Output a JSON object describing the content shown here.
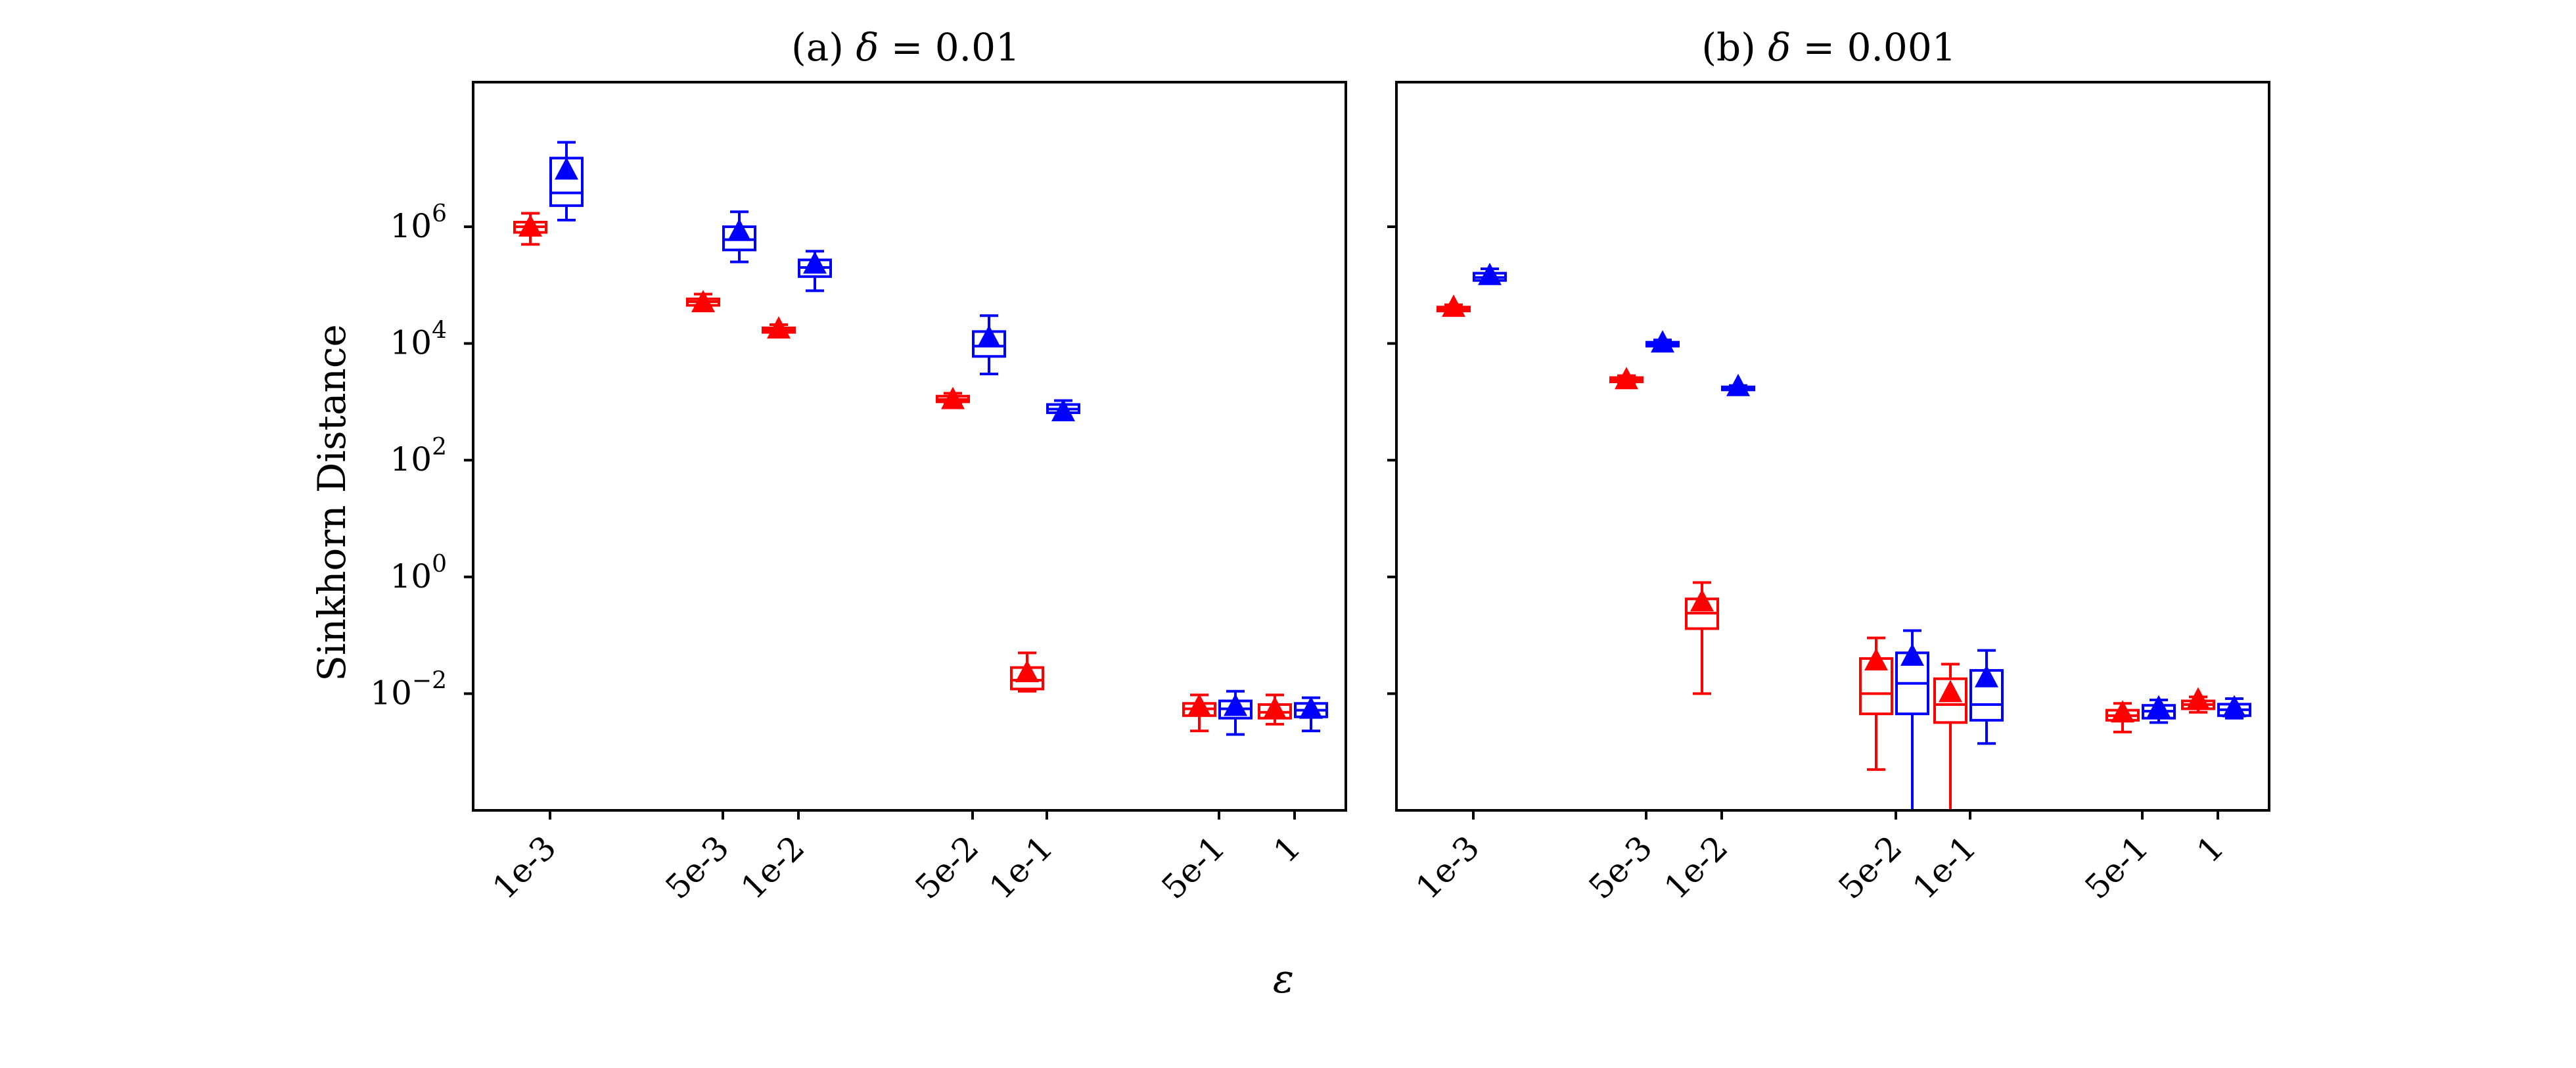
{
  "xlabel": "ε",
  "ylabel": "Sinkhorn Distance",
  "colors": {
    "series_a": "#ff0000",
    "series_b": "#0000ff"
  },
  "chart_data": [
    {
      "type": "box",
      "title_prefix": "(a) ",
      "title_symbol": "δ",
      "title_suffix": " = 0.01",
      "xlabel": "ε",
      "ylabel": "Sinkhorn Distance",
      "yscale": "log",
      "ylim": [
        0.0001,
        300000000
      ],
      "yticks": [
        {
          "base": "10",
          "exp": "6",
          "value": 1000000
        },
        {
          "base": "10",
          "exp": "4",
          "value": 10000
        },
        {
          "base": "10",
          "exp": "2",
          "value": 100
        },
        {
          "base": "10",
          "exp": "0",
          "value": 1
        },
        {
          "base": "10",
          "exp": "−2",
          "value": 0.01
        }
      ],
      "categories": [
        "1e-3",
        "5e-3",
        "1e-2",
        "5e-2",
        "1e-1",
        "5e-1",
        "1"
      ],
      "series": [
        {
          "color": "#ff0000",
          "boxes": [
            {
              "lo": 500000,
              "q1": 800000,
              "med": 1000000,
              "q3": 1200000,
              "hi": 1700000,
              "mean": 950000
            },
            {
              "lo": 40000,
              "q1": 45000,
              "med": 52000,
              "q3": 58000,
              "hi": 70000,
              "mean": 48000
            },
            {
              "lo": 14000,
              "q1": 15500,
              "med": 17000,
              "q3": 18500,
              "hi": 21000,
              "mean": 17000
            },
            {
              "lo": 900,
              "q1": 1000,
              "med": 1100,
              "q3": 1250,
              "hi": 1400,
              "mean": 1050
            },
            {
              "lo": 0.011,
              "q1": 0.012,
              "med": 0.017,
              "q3": 0.028,
              "hi": 0.05,
              "mean": 0.022
            },
            {
              "lo": 0.0023,
              "q1": 0.0042,
              "med": 0.0055,
              "q3": 0.0068,
              "hi": 0.0095,
              "mean": 0.0058
            },
            {
              "lo": 0.003,
              "q1": 0.0038,
              "med": 0.0048,
              "q3": 0.0065,
              "hi": 0.0095,
              "mean": 0.0052
            }
          ]
        },
        {
          "color": "#0000ff",
          "boxes": [
            {
              "lo": 1300000,
              "q1": 2300000,
              "med": 3800000,
              "q3": 15000000,
              "hi": 28000000,
              "mean": 9000000
            },
            {
              "lo": 250000,
              "q1": 400000,
              "med": 600000,
              "q3": 1000000,
              "hi": 1800000,
              "mean": 800000
            },
            {
              "lo": 80000,
              "q1": 140000,
              "med": 200000,
              "q3": 270000,
              "hi": 380000,
              "mean": 220000
            },
            {
              "lo": 3000,
              "q1": 6000,
              "med": 9000,
              "q3": 16000,
              "hi": 30000,
              "mean": 12000
            },
            {
              "lo": 550,
              "q1": 650,
              "med": 750,
              "q3": 900,
              "hi": 1050,
              "mean": 650
            },
            {
              "lo": 0.002,
              "q1": 0.0038,
              "med": 0.0055,
              "q3": 0.0075,
              "hi": 0.011,
              "mean": 0.0058
            },
            {
              "lo": 0.0023,
              "q1": 0.004,
              "med": 0.0052,
              "q3": 0.0068,
              "hi": 0.0085,
              "mean": 0.0052
            }
          ]
        }
      ]
    },
    {
      "type": "box",
      "title_prefix": "(b) ",
      "title_symbol": "δ",
      "title_suffix": " = 0.001",
      "xlabel": "ε",
      "ylabel": "Sinkhorn Distance",
      "yscale": "log",
      "ylim": [
        0.0001,
        300000000
      ],
      "categories": [
        "1e-3",
        "5e-3",
        "1e-2",
        "5e-2",
        "1e-1",
        "5e-1",
        "1"
      ],
      "series": [
        {
          "color": "#ff0000",
          "boxes": [
            {
              "lo": 33000,
              "q1": 36000,
              "med": 39000,
              "q3": 42000,
              "hi": 46000,
              "mean": 40000
            },
            {
              "lo": 2000,
              "q1": 2200,
              "med": 2400,
              "q3": 2600,
              "hi": 2800,
              "mean": 2300
            },
            {
              "lo": 0.01,
              "q1": 0.13,
              "med": 0.24,
              "q3": 0.42,
              "hi": 0.8,
              "mean": 0.36
            },
            {
              "lo": 0.0005,
              "q1": 0.0045,
              "med": 0.01,
              "q3": 0.04,
              "hi": 0.09,
              "mean": 0.035
            },
            {
              "lo": 1e-05,
              "q1": 0.0032,
              "med": 0.0065,
              "q3": 0.018,
              "hi": 0.032,
              "mean": 0.01
            },
            {
              "lo": 0.0022,
              "q1": 0.0035,
              "med": 0.0042,
              "q3": 0.0052,
              "hi": 0.0068,
              "mean": 0.0045
            },
            {
              "lo": 0.0048,
              "q1": 0.0055,
              "med": 0.0065,
              "q3": 0.0075,
              "hi": 0.0088,
              "mean": 0.0075
            }
          ]
        },
        {
          "color": "#0000ff",
          "boxes": [
            {
              "lo": 110000,
              "q1": 120000,
              "med": 135000,
              "q3": 160000,
              "hi": 190000,
              "mean": 140000
            },
            {
              "lo": 8500,
              "q1": 9000,
              "med": 9500,
              "q3": 10500,
              "hi": 11500,
              "mean": 9800
            },
            {
              "lo": 1500,
              "q1": 1600,
              "med": 1700,
              "q3": 1800,
              "hi": 1900,
              "mean": 1750
            },
            {
              "lo": 1e-05,
              "q1": 0.0045,
              "med": 0.015,
              "q3": 0.05,
              "hi": 0.12,
              "mean": 0.042
            },
            {
              "lo": 0.0014,
              "q1": 0.0035,
              "med": 0.0065,
              "q3": 0.025,
              "hi": 0.055,
              "mean": 0.018
            },
            {
              "lo": 0.0032,
              "q1": 0.0038,
              "med": 0.005,
              "q3": 0.0063,
              "hi": 0.0078,
              "mean": 0.0055
            },
            {
              "lo": 0.0038,
              "q1": 0.0042,
              "med": 0.0053,
              "q3": 0.0066,
              "hi": 0.0082,
              "mean": 0.0055
            }
          ]
        }
      ]
    }
  ]
}
